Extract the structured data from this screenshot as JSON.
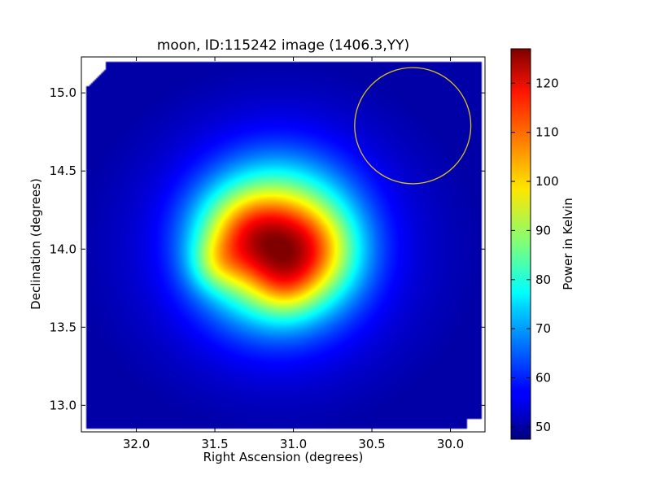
{
  "chart_data": {
    "type": "heatmap",
    "title": "moon, ID:115242 image (1406.3,YY)",
    "xlabel": "Right Ascension (degrees)",
    "ylabel": "Declination (degrees)",
    "xlim": [
      32.35,
      29.78
    ],
    "ylim": [
      12.83,
      15.23
    ],
    "x_reversed": true,
    "grid": false,
    "x_ticks": [
      {
        "value": 32.0,
        "label": "32.0"
      },
      {
        "value": 31.5,
        "label": "31.5"
      },
      {
        "value": 31.0,
        "label": "31.0"
      },
      {
        "value": 30.5,
        "label": "30.5"
      },
      {
        "value": 30.0,
        "label": "30.0"
      }
    ],
    "y_ticks": [
      {
        "value": 13.0,
        "label": "13.0"
      },
      {
        "value": 13.5,
        "label": "13.5"
      },
      {
        "value": 14.0,
        "label": "14.0"
      },
      {
        "value": 14.5,
        "label": "14.5"
      },
      {
        "value": 15.0,
        "label": "15.0"
      }
    ],
    "colorbar": {
      "label": "Power in Kelvin",
      "range": [
        47.5,
        127
      ],
      "colormap": "jet",
      "ticks": [
        {
          "value": 50,
          "label": "50"
        },
        {
          "value": 60,
          "label": "60"
        },
        {
          "value": 70,
          "label": "70"
        },
        {
          "value": 80,
          "label": "80"
        },
        {
          "value": 90,
          "label": "90"
        },
        {
          "value": 100,
          "label": "100"
        },
        {
          "value": 110,
          "label": "110"
        },
        {
          "value": 120,
          "label": "120"
        }
      ]
    },
    "background_level_kelvin": 55,
    "peak": {
      "ra": 31.08,
      "dec": 14.03,
      "value": 126
    },
    "peak_blobs": [
      {
        "ra": 31.1,
        "dec": 14.03,
        "sigma_deg": 0.33,
        "amp": 60
      },
      {
        "ra": 31.35,
        "dec": 14.1,
        "sigma_deg": 0.2,
        "amp": 14
      },
      {
        "ra": 30.85,
        "dec": 13.97,
        "sigma_deg": 0.2,
        "amp": 13
      },
      {
        "ra": 31.5,
        "dec": 13.9,
        "sigma_deg": 0.12,
        "amp": 10
      },
      {
        "ra": 31.05,
        "dec": 13.75,
        "sigma_deg": 0.14,
        "amp": 9
      }
    ],
    "reference_circle": {
      "ra": 30.24,
      "dec": 14.79,
      "radius_deg": 0.37,
      "color": "#d9c21e"
    }
  }
}
